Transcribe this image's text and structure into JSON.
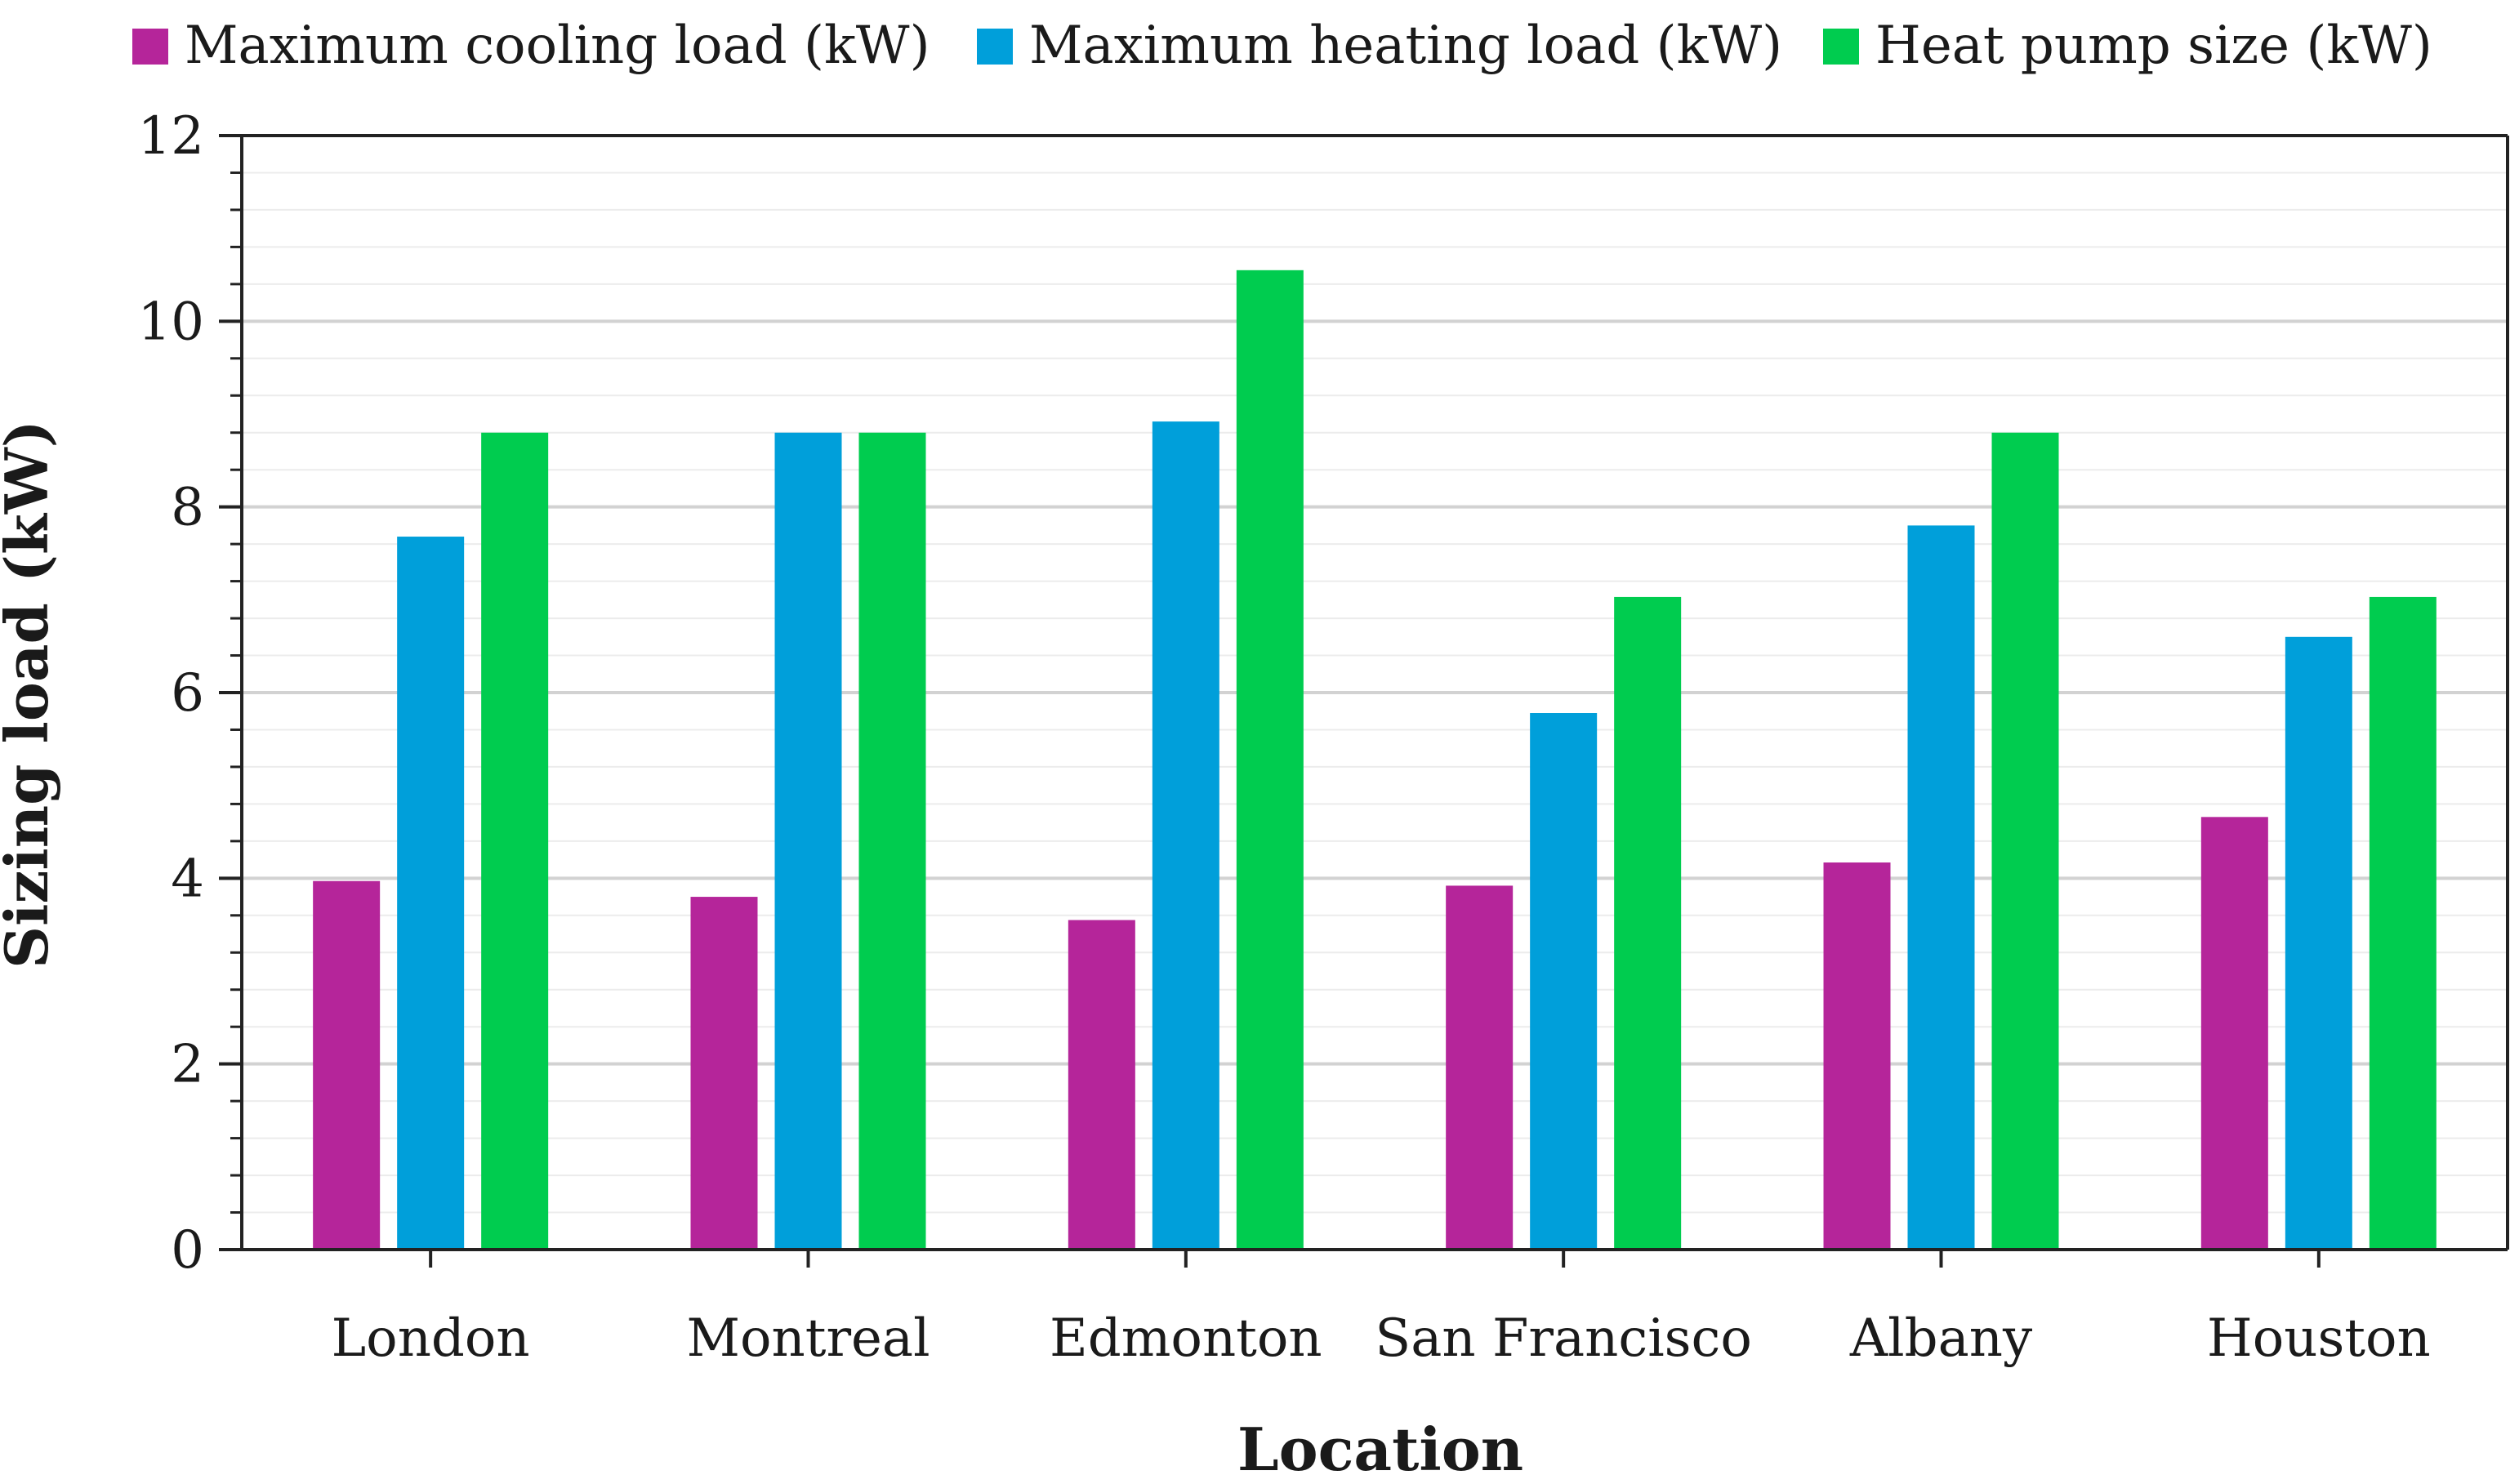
{
  "chart_data": {
    "type": "bar",
    "title": "",
    "xlabel": "Location",
    "ylabel": "Sizing load (kW)",
    "ylim": [
      0,
      12
    ],
    "y_major_step": 2,
    "y_minor_step": 0.4,
    "grid": true,
    "legend_position": "top",
    "categories": [
      "London",
      "Montreal",
      "Edmonton",
      "San Francisco",
      "Albany",
      "Houston"
    ],
    "series": [
      {
        "name": "Maximum cooling load (kW)",
        "color": "#b5259a",
        "values": [
          3.97,
          3.8,
          3.55,
          3.92,
          4.17,
          4.66
        ]
      },
      {
        "name": "Maximum heating load (kW)",
        "color": "#009fda",
        "values": [
          7.68,
          8.8,
          8.92,
          5.78,
          7.8,
          6.6
        ]
      },
      {
        "name": "Heat pump size (kW)",
        "color": "#00cc4f",
        "values": [
          8.8,
          8.8,
          10.55,
          7.03,
          8.8,
          7.03
        ]
      }
    ]
  }
}
